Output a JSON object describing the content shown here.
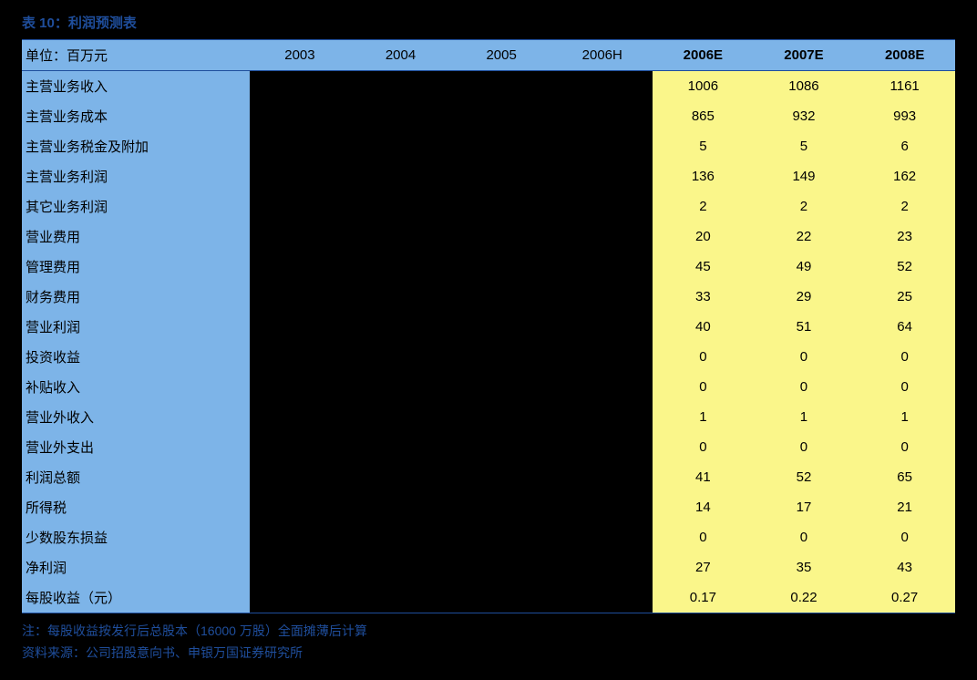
{
  "title": "表 10：利润预测表",
  "header": {
    "unit_label": "单位：百万元",
    "years": [
      "2003",
      "2004",
      "2005",
      "2006H",
      "2006E",
      "2007E",
      "2008E"
    ],
    "bold_columns": [
      false,
      false,
      false,
      false,
      true,
      true,
      true
    ]
  },
  "rows": [
    {
      "label": "主营业务收入",
      "values": [
        "",
        "",
        "",
        "",
        "1006",
        "1086",
        "1161"
      ]
    },
    {
      "label": "主营业务成本",
      "values": [
        "",
        "",
        "",
        "",
        "865",
        "932",
        "993"
      ]
    },
    {
      "label": "主营业务税金及附加",
      "values": [
        "",
        "",
        "",
        "",
        "5",
        "5",
        "6"
      ]
    },
    {
      "label": "主营业务利润",
      "values": [
        "",
        "",
        "",
        "",
        "136",
        "149",
        "162"
      ]
    },
    {
      "label": "其它业务利润",
      "values": [
        "",
        "",
        "",
        "",
        "2",
        "2",
        "2"
      ]
    },
    {
      "label": "营业费用",
      "values": [
        "",
        "",
        "",
        "",
        "20",
        "22",
        "23"
      ]
    },
    {
      "label": "管理费用",
      "values": [
        "",
        "",
        "",
        "",
        "45",
        "49",
        "52"
      ]
    },
    {
      "label": "财务费用",
      "values": [
        "",
        "",
        "",
        "",
        "33",
        "29",
        "25"
      ]
    },
    {
      "label": "营业利润",
      "values": [
        "",
        "",
        "",
        "",
        "40",
        "51",
        "64"
      ]
    },
    {
      "label": "投资收益",
      "values": [
        "",
        "",
        "",
        "",
        "0",
        "0",
        "0"
      ]
    },
    {
      "label": "补贴收入",
      "values": [
        "",
        "",
        "",
        "",
        "0",
        "0",
        "0"
      ]
    },
    {
      "label": "营业外收入",
      "values": [
        "",
        "",
        "",
        "",
        "1",
        "1",
        "1"
      ]
    },
    {
      "label": "营业外支出",
      "values": [
        "",
        "",
        "",
        "",
        "0",
        "0",
        "0"
      ]
    },
    {
      "label": "利润总额",
      "values": [
        "",
        "",
        "",
        "",
        "41",
        "52",
        "65"
      ]
    },
    {
      "label": "所得税",
      "values": [
        "",
        "",
        "",
        "",
        "14",
        "17",
        "21"
      ]
    },
    {
      "label": "少数股东损益",
      "values": [
        "",
        "",
        "",
        "",
        "0",
        "0",
        "0"
      ]
    },
    {
      "label": "净利润",
      "values": [
        "",
        "",
        "",
        "",
        "27",
        "35",
        "43"
      ]
    },
    {
      "label": "每股收益（元）",
      "values": [
        "",
        "",
        "",
        "",
        "0.17",
        "0.22",
        "0.27"
      ]
    }
  ],
  "footnote_line1": "注：每股收益按发行后总股本（16000 万股）全面摊薄后计算",
  "footnote_line2": "资料来源：公司招股意向书、申银万国证券研究所",
  "colors": {
    "title_color": "#1f4e9c",
    "header_bg": "#7db4e8",
    "label_col_bg": "#7db4e8",
    "forecast_bg": "#faf68a",
    "historical_bg": "#000000",
    "border_color": "#1f4e9c",
    "body_bg": "#000000",
    "footnote_color": "#1f4e9c"
  }
}
